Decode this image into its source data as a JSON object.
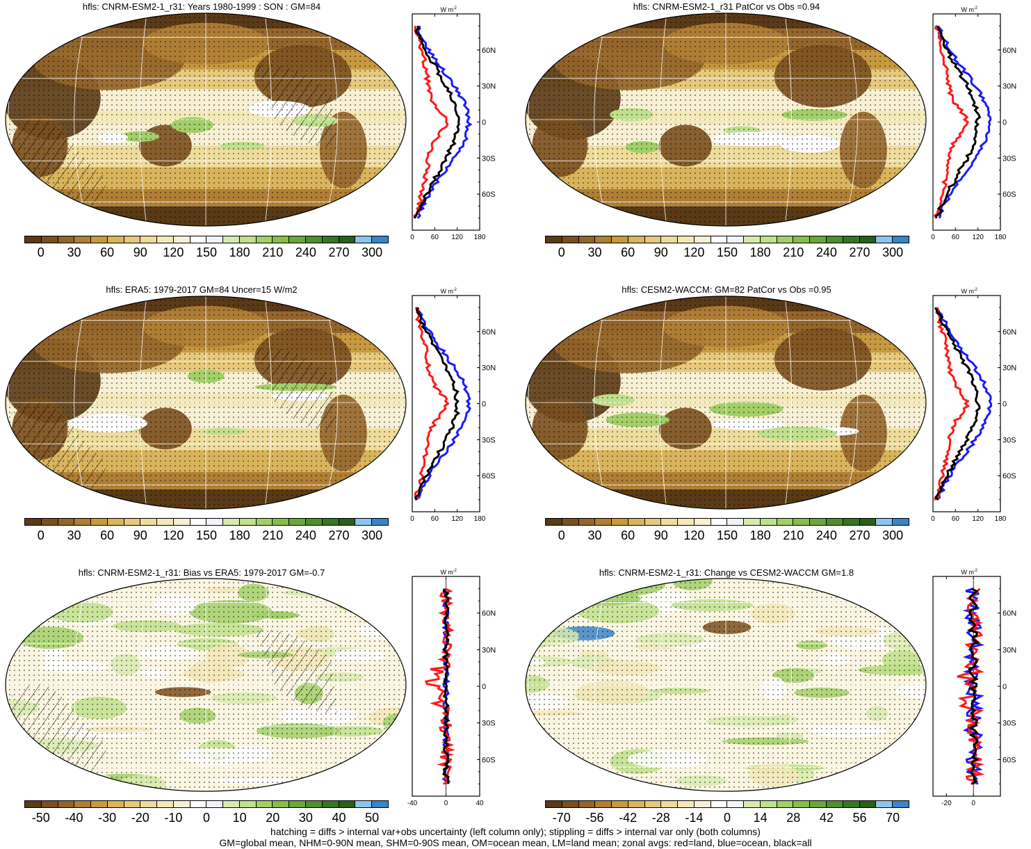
{
  "panels": [
    {
      "title": "hfls: CNRM-ESM2-1_r31: Years 1980-1999 : SON : GM=84",
      "kind": "clim",
      "hatch": true
    },
    {
      "title": "hfls: CNRM-ESM2-1_r31 PatCor vs Obs =0.94",
      "kind": "clim",
      "hatch": false
    },
    {
      "title": "hfls: ERA5: 1979-2017 GM=84 Uncer=15 W/m2",
      "kind": "clim",
      "hatch": true
    },
    {
      "title": "hfls: CESM2-WACCM: GM=82 PatCor vs Obs =0.95",
      "kind": "clim",
      "hatch": false
    },
    {
      "title": "hfls: CNRM-ESM2-1_r31: Bias vs ERA5: 1979-2017  GM=-0.7",
      "kind": "diff",
      "hatch": true
    },
    {
      "title": "hfls: CNRM-ESM2-1_r31: Change vs CESM2-WACCM GM=1.8",
      "kind": "diff",
      "hatch": false
    }
  ],
  "colorbars": {
    "clim": {
      "labels": [
        "0",
        "30",
        "60",
        "90",
        "120",
        "150",
        "180",
        "210",
        "240",
        "270",
        "300"
      ],
      "colors": [
        "#5a3a16",
        "#7a4f1f",
        "#94652b",
        "#b07f35",
        "#c89a40",
        "#d9b45c",
        "#e6c97c",
        "#eedc9c",
        "#f3e8b8",
        "#f7f0d4",
        "#ffffff",
        "#f2f2f8",
        "#d8eab0",
        "#bfe08c",
        "#a2cf68",
        "#86bd4c",
        "#6aa73c",
        "#4f8f2c",
        "#367622",
        "#2a5e1c",
        "#8cc4ef",
        "#3a84c8"
      ]
    },
    "bias": {
      "labels": [
        "-50",
        "-40",
        "-30",
        "-20",
        "-10",
        "0",
        "10",
        "20",
        "30",
        "40",
        "50"
      ],
      "colors": [
        "#5a3a16",
        "#7a4f1f",
        "#94652b",
        "#b07f35",
        "#c89a40",
        "#d9b45c",
        "#e6c97c",
        "#eedc9c",
        "#f3e8b8",
        "#f7f0d4",
        "#ffffff",
        "#f2f2f8",
        "#d8eab0",
        "#bfe08c",
        "#a2cf68",
        "#86bd4c",
        "#6aa73c",
        "#4f8f2c",
        "#367622",
        "#2a5e1c",
        "#8cc4ef",
        "#3a84c8"
      ]
    },
    "change": {
      "labels": [
        "-70",
        "-56",
        "-42",
        "-28",
        "-14",
        "0",
        "14",
        "28",
        "42",
        "56",
        "70"
      ],
      "colors": [
        "#5a3a16",
        "#7a4f1f",
        "#94652b",
        "#b07f35",
        "#c89a40",
        "#d9b45c",
        "#e6c97c",
        "#eedc9c",
        "#f3e8b8",
        "#f7f0d4",
        "#ffffff",
        "#f2f2f8",
        "#d8eab0",
        "#bfe08c",
        "#a2cf68",
        "#86bd4c",
        "#6aa73c",
        "#4f8f2c",
        "#367622",
        "#2a5e1c",
        "#8cc4ef",
        "#3a84c8"
      ]
    }
  },
  "profile": {
    "unit_w": "W",
    "unit_m": "m",
    "unit_exp": "-2",
    "lat_labels": [
      "60N",
      "30N",
      "0",
      "30S",
      "60S"
    ],
    "lat_values": [
      60,
      30,
      0,
      -30,
      -60
    ],
    "clim_xticks": [
      "0",
      "60",
      "120",
      "180"
    ],
    "clim_xvals": [
      0,
      60,
      120,
      180
    ],
    "bias_xticks": [
      "-40",
      "0",
      "40"
    ],
    "bias_xvals": [
      -40,
      0,
      40
    ],
    "change_xticks": [
      "-20",
      "0"
    ],
    "change_xvals": [
      -20,
      0
    ],
    "series_colors": {
      "land": "#ff1a1a",
      "ocean": "#1a1aff",
      "all": "#000000"
    }
  },
  "footer": {
    "line1": "hatching = diffs > internal var+obs uncertainty (left column only); stippling = diffs > internal var only (both columns)",
    "line2": "GM=global mean, NHM=0-90N mean, SHM=0-90S mean, OM=ocean mean, LM=land mean; zonal avgs: red=land, blue=ocean, black=all"
  }
}
